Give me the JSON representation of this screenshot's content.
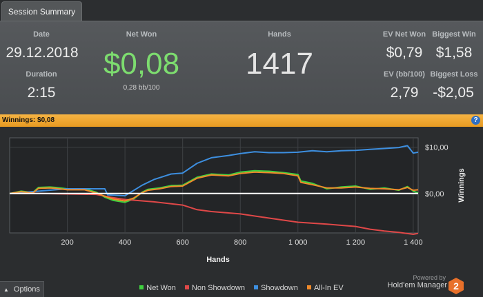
{
  "tab": {
    "label": "Session Summary"
  },
  "summary": {
    "date_label": "Date",
    "date_value": "29.12.2018",
    "duration_label": "Duration",
    "duration_value": "2:15",
    "netwon_label": "Net Won",
    "netwon_value": "$0,08",
    "netwon_sub": "0,28 bb/100",
    "hands_label": "Hands",
    "hands_value": "1417",
    "evnet_label": "EV Net Won",
    "evnet_value": "$0,79",
    "bigwin_label": "Biggest Win",
    "bigwin_value": "$1,58",
    "evbb_label": "EV (bb/100)",
    "evbb_value": "2,79",
    "bigloss_label": "Biggest Loss",
    "bigloss_value": "-$2,05"
  },
  "bar": {
    "winnings_label": "Winnings:",
    "winnings_value": "$0,08",
    "help": "?"
  },
  "colors": {
    "net_won": "#3fd23f",
    "non_showdown": "#e04848",
    "showdown": "#3d8fe0",
    "allin_ev": "#f08a2a",
    "accent": "#f0a830"
  },
  "chart_data": {
    "type": "line",
    "xlabel": "Hands",
    "ylabel": "Winnings",
    "xlim": [
      0,
      1417
    ],
    "ylim": [
      -8.5,
      12
    ],
    "x_ticks": [
      200,
      400,
      600,
      800,
      1000,
      1200,
      1400
    ],
    "x_tick_labels": [
      "200",
      "400",
      "600",
      "800",
      "1 000",
      "1 200",
      "1 400"
    ],
    "y_ticks": [
      0,
      10
    ],
    "y_tick_labels": [
      "$0,00",
      "$10,00"
    ],
    "grid": true,
    "legend_position": "bottom",
    "series": [
      {
        "name": "Net Won",
        "color": "#3fd23f",
        "x": [
          0,
          40,
          80,
          100,
          140,
          160,
          200,
          260,
          300,
          330,
          360,
          400,
          430,
          460,
          480,
          520,
          560,
          600,
          650,
          700,
          760,
          800,
          850,
          900,
          950,
          1000,
          1010,
          1050,
          1100,
          1150,
          1200,
          1250,
          1300,
          1350,
          1380,
          1400,
          1417
        ],
        "y": [
          0,
          0.5,
          0.2,
          1.3,
          1.4,
          1.3,
          1.0,
          1.0,
          0.3,
          -0.8,
          -1.5,
          -1.9,
          -1.2,
          0.3,
          0.9,
          1.2,
          1.7,
          1.8,
          3.5,
          4.2,
          4.0,
          4.6,
          4.9,
          4.8,
          4.5,
          4.1,
          2.7,
          2.2,
          1.0,
          1.4,
          1.6,
          0.9,
          1.2,
          0.7,
          1.5,
          0.5,
          0.1
        ]
      },
      {
        "name": "Non Showdown",
        "color": "#e04848",
        "x": [
          0,
          100,
          200,
          300,
          350,
          400,
          500,
          600,
          650,
          700,
          800,
          900,
          1000,
          1100,
          1200,
          1250,
          1300,
          1350,
          1400,
          1417
        ],
        "y": [
          0,
          0,
          -0.1,
          -0.2,
          -0.8,
          -1.3,
          -1.8,
          -2.5,
          -3.5,
          -3.9,
          -4.4,
          -5.3,
          -6.2,
          -6.6,
          -7.1,
          -7.7,
          -8.1,
          -8.4,
          -8.8,
          -8.6
        ]
      },
      {
        "name": "Showdown",
        "color": "#3d8fe0",
        "x": [
          0,
          100,
          200,
          330,
          340,
          400,
          460,
          500,
          560,
          600,
          650,
          700,
          760,
          800,
          850,
          900,
          950,
          1000,
          1050,
          1100,
          1150,
          1200,
          1250,
          1300,
          1350,
          1380,
          1400,
          1417
        ],
        "y": [
          0,
          0.5,
          1.0,
          1.0,
          -0.3,
          -0.5,
          1.8,
          3.0,
          4.2,
          4.4,
          6.5,
          7.7,
          8.2,
          8.6,
          9.0,
          8.8,
          8.8,
          8.9,
          9.2,
          9.0,
          9.2,
          9.3,
          9.5,
          9.7,
          9.9,
          10.3,
          8.7,
          8.9
        ]
      },
      {
        "name": "All-In EV",
        "color": "#f08a2a",
        "x": [
          0,
          40,
          80,
          100,
          140,
          160,
          200,
          260,
          300,
          330,
          360,
          400,
          430,
          460,
          480,
          520,
          560,
          600,
          650,
          700,
          760,
          800,
          850,
          900,
          950,
          1000,
          1010,
          1050,
          1100,
          1150,
          1200,
          1250,
          1300,
          1350,
          1380,
          1400,
          1417
        ],
        "y": [
          0,
          0.4,
          0.1,
          1.1,
          1.2,
          1.1,
          0.8,
          0.8,
          0.1,
          -0.6,
          -1.2,
          -1.6,
          -1.0,
          0.2,
          0.7,
          1.0,
          1.5,
          1.6,
          3.3,
          4.0,
          3.8,
          4.3,
          4.6,
          4.5,
          4.3,
          3.8,
          2.4,
          1.9,
          1.2,
          1.2,
          1.4,
          1.1,
          1.0,
          0.8,
          1.3,
          0.7,
          0.8
        ]
      }
    ]
  },
  "options": {
    "label": "Options"
  },
  "branding": {
    "powered": "Powered by",
    "product": "Hold'em Manager",
    "logo_number": "2"
  }
}
